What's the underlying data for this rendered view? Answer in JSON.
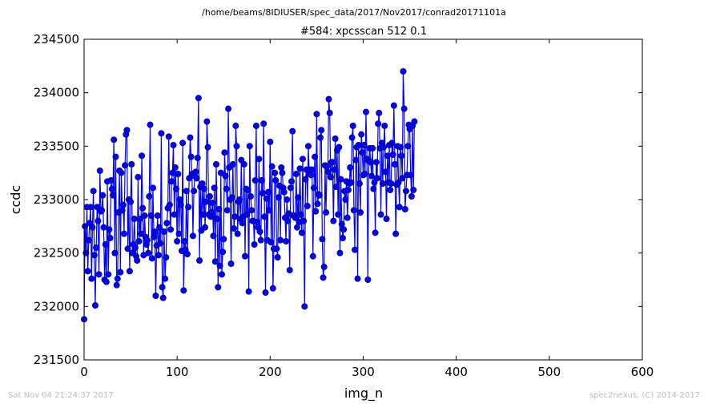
{
  "suptitle": "/home/beams/8IDIUSER/spec_data/2017/Nov2017/conrad20171101a",
  "footer_left": "Sat Nov 04 21:24:37 2017",
  "footer_right": "spec2nexus, (C) 2014-2017",
  "colors": {
    "line": "#0000ff",
    "marker_fill": "#0000ff",
    "marker_edge": "#000080"
  },
  "chart_data": {
    "type": "line",
    "title": "#584: xpcsscan 512 0.1",
    "xlabel": "img_n",
    "ylabel": "ccdc",
    "xlim": [
      0,
      600
    ],
    "ylim": [
      231500,
      234500
    ],
    "xticks": [
      0,
      100,
      200,
      300,
      400,
      500,
      600
    ],
    "yticks": [
      231500,
      232000,
      232500,
      233000,
      233500,
      234000,
      234500
    ],
    "marker": "circle",
    "grid": false,
    "series": [
      {
        "x_start": 0,
        "x_step": 1,
        "y": [
          231880,
          232750,
          232500,
          232930,
          232330,
          232620,
          232780,
          232930,
          232260,
          232740,
          233080,
          232480,
          232010,
          232550,
          232930,
          232800,
          232300,
          233270,
          232890,
          232900,
          233040,
          232740,
          232250,
          232580,
          232230,
          233170,
          232300,
          232720,
          232640,
          233180,
          233100,
          233040,
          233560,
          232500,
          233400,
          232200,
          232260,
          232880,
          233270,
          232320,
          233250,
          232900,
          232950,
          232680,
          233320,
          233610,
          233650,
          232540,
          233000,
          232330,
          232980,
          233330,
          232500,
          232580,
          232820,
          232550,
          232470,
          232430,
          233210,
          232610,
          232820,
          232680,
          233410,
          232920,
          232480,
          232850,
          232650,
          232580,
          232620,
          232500,
          233030,
          233700,
          232850,
          232450,
          233110,
          232650,
          232700,
          232100,
          232570,
          232850,
          232480,
          232740,
          232590,
          233620,
          232180,
          232080,
          232700,
          232260,
          232460,
          232780,
          232920,
          233590,
          232950,
          232720,
          233170,
          233250,
          233510,
          232860,
          233300,
          233100,
          232610,
          233240,
          232680,
          233000,
          232950,
          232520,
          233530,
          232150,
          232610,
          232530,
          233080,
          232490,
          232930,
          233200,
          233580,
          233400,
          233240,
          232660,
          233080,
          233220,
          233260,
          233200,
          233390,
          233950,
          232430,
          233120,
          232710,
          233150,
          232860,
          233100,
          232740,
          232980,
          233730,
          233490,
          232860,
          233030,
          232840,
          232880,
          232970,
          232660,
          233110,
          232420,
          233330,
          232820,
          232180,
          232910,
          232380,
          233250,
          232300,
          232510,
          232630,
          233440,
          233220,
          233100,
          232900,
          233850,
          233300,
          233000,
          232400,
          233020,
          233330,
          232730,
          232840,
          233690,
          233500,
          232680,
          232980,
          233000,
          232820,
          233370,
          232780,
          232840,
          233330,
          232470,
          233100,
          232860,
          233090,
          232140,
          233500,
          233030,
          232900,
          232800,
          232800,
          232580,
          233180,
          233690,
          232790,
          232740,
          233380,
          232700,
          232620,
          233180,
          233060,
          233710,
          232840,
          232130,
          233010,
          232620,
          233070,
          232900,
          233540,
          232600,
          233310,
          232170,
          232540,
          233250,
          233180,
          232540,
          232460,
          233020,
          233130,
          232620,
          233300,
          233250,
          233110,
          233070,
          232830,
          232610,
          233000,
          232800,
          232870,
          232340,
          233110,
          233170,
          233640,
          232850,
          232850,
          232830,
          233240,
          232740,
          233020,
          232790,
          233290,
          232860,
          232690,
          233380,
          232800,
          232000,
          233190,
          233280,
          232940,
          233500,
          233240,
          233280,
          233230,
          233280,
          232470,
          233110,
          233400,
          232890,
          233800,
          232960,
          233050,
          233040,
          233580,
          233650,
          232630,
          232270,
          232370,
          233320,
          232880,
          233310,
          233260,
          233940,
          233810,
          233210,
          233350,
          233350,
          232800,
          233280,
          233570,
          233120,
          233460,
          232860,
          233490,
          232500,
          233190,
          232770,
          232640,
          232720,
          233080,
          233000,
          233170,
          232830,
          233090,
          233150,
          233300,
          233160,
          233580,
          233690,
          232900,
          232530,
          233370,
          233490,
          232260,
          233510,
          233150,
          232880,
          233610,
          233440,
          233230,
          233510,
          233240,
          233820,
          233380,
          232250,
          233360,
          233480,
          233350,
          233220,
          233480,
          233100,
          233160,
          232690,
          233350,
          233200,
          233710,
          233810,
          233480,
          232860,
          233530,
          233150,
          233490,
          233690,
          233260,
          232820,
          233410,
          233160,
          233510,
          233090,
          233150,
          233530,
          233420,
          233880,
          233330,
          232680,
          233140,
          233500,
          233160,
          232930,
          233490,
          233410,
          233200,
          234200,
          233850,
          232910,
          233080,
          233230,
          233500,
          233700,
          233660,
          233230,
          233030,
          233690,
          233090,
          233730
        ]
      }
    ]
  }
}
